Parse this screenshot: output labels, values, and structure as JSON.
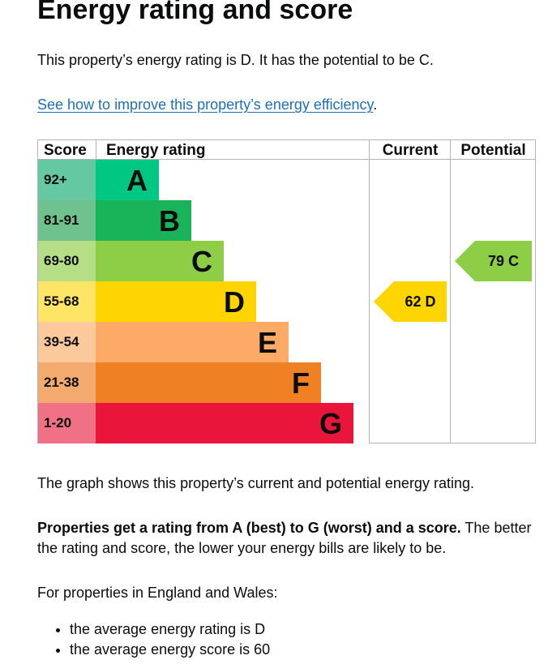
{
  "heading": "Energy rating and score",
  "intro": "This property’s energy rating is D. It has the potential to be C.",
  "improve_link": "See how to improve this property’s energy efficiency",
  "improve_suffix": ".",
  "graph_caption": "The graph shows this property’s current and potential energy rating.",
  "ratings_bold": "Properties get a rating from A (best) to G (worst) and a score.",
  "ratings_rest": " The better the rating and score, the lower your energy bills are likely to be.",
  "region_intro": "For properties in England and Wales:",
  "facts": [
    "the average energy rating is D",
    "the average energy score is 60"
  ],
  "chart_data": {
    "type": "bar",
    "headers": {
      "score": "Score",
      "rating": "Energy rating",
      "current": "Current",
      "potential": "Potential"
    },
    "bands": [
      {
        "score": "92+",
        "letter": "A",
        "color": "#00c781",
        "score_bg": "#64c9a2"
      },
      {
        "score": "81-91",
        "letter": "B",
        "color": "#19b459",
        "score_bg": "#6fc28d"
      },
      {
        "score": "69-80",
        "letter": "C",
        "color": "#8dce46",
        "score_bg": "#b6de87"
      },
      {
        "score": "55-68",
        "letter": "D",
        "color": "#ffd500",
        "score_bg": "#fee566"
      },
      {
        "score": "39-54",
        "letter": "E",
        "color": "#fcaa65",
        "score_bg": "#fcc99c"
      },
      {
        "score": "21-38",
        "letter": "F",
        "color": "#ef8023",
        "score_bg": "#f3aa6e"
      },
      {
        "score": "1-20",
        "letter": "G",
        "color": "#e9153b",
        "score_bg": "#f07186"
      }
    ],
    "current": {
      "value": 62,
      "letter": "D",
      "label": "62  D",
      "color": "#ffd500"
    },
    "potential": {
      "value": 79,
      "letter": "C",
      "label": "79  C",
      "color": "#8dce46"
    }
  }
}
